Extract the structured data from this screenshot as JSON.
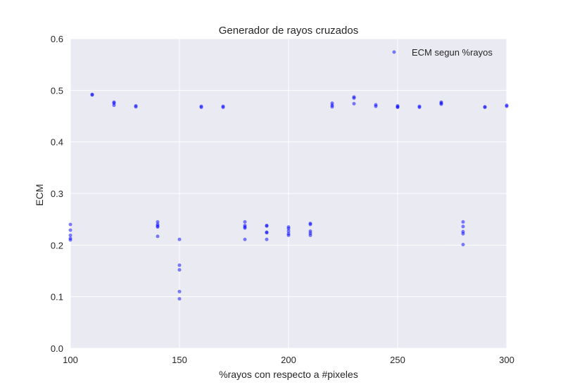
{
  "chart_data": {
    "type": "scatter",
    "title": "Generador de rayos cruzados",
    "xlabel": "%rayos con respecto a #pixeles",
    "ylabel": "ECM",
    "xlim": [
      100,
      300
    ],
    "ylim": [
      0.0,
      0.6
    ],
    "xticks": [
      "100",
      "150",
      "200",
      "250",
      "300"
    ],
    "yticks": [
      "0.0",
      "0.1",
      "0.2",
      "0.3",
      "0.4",
      "0.5",
      "0.6"
    ],
    "grid": true,
    "legend_position": "top-right",
    "colors": {
      "plot_bg": "#eaeaf2",
      "grid": "#ffffff",
      "marker": "#0000ff"
    },
    "series": [
      {
        "name": "ECM segun %rayos",
        "points": [
          [
            100,
            0.24
          ],
          [
            100,
            0.229
          ],
          [
            100,
            0.219
          ],
          [
            100,
            0.213
          ],
          [
            100,
            0.21
          ],
          [
            110,
            0.491
          ],
          [
            110,
            0.492
          ],
          [
            120,
            0.477
          ],
          [
            120,
            0.475
          ],
          [
            120,
            0.471
          ],
          [
            130,
            0.47
          ],
          [
            130,
            0.468
          ],
          [
            140,
            0.245
          ],
          [
            140,
            0.24
          ],
          [
            140,
            0.237
          ],
          [
            140,
            0.235
          ],
          [
            140,
            0.217
          ],
          [
            150,
            0.211
          ],
          [
            150,
            0.161
          ],
          [
            150,
            0.152
          ],
          [
            150,
            0.11
          ],
          [
            150,
            0.096
          ],
          [
            160,
            0.469
          ],
          [
            160,
            0.467
          ],
          [
            170,
            0.469
          ],
          [
            170,
            0.467
          ],
          [
            180,
            0.245
          ],
          [
            180,
            0.238
          ],
          [
            180,
            0.235
          ],
          [
            180,
            0.233
          ],
          [
            180,
            0.211
          ],
          [
            190,
            0.238
          ],
          [
            190,
            0.237
          ],
          [
            190,
            0.225
          ],
          [
            190,
            0.224
          ],
          [
            190,
            0.211
          ],
          [
            200,
            0.235
          ],
          [
            200,
            0.232
          ],
          [
            200,
            0.227
          ],
          [
            200,
            0.222
          ],
          [
            200,
            0.219
          ],
          [
            210,
            0.242
          ],
          [
            210,
            0.24
          ],
          [
            210,
            0.227
          ],
          [
            210,
            0.223
          ],
          [
            210,
            0.219
          ],
          [
            220,
            0.475
          ],
          [
            220,
            0.471
          ],
          [
            220,
            0.468
          ],
          [
            230,
            0.487
          ],
          [
            230,
            0.485
          ],
          [
            230,
            0.474
          ],
          [
            240,
            0.472
          ],
          [
            240,
            0.469
          ],
          [
            250,
            0.47
          ],
          [
            250,
            0.468
          ],
          [
            250,
            0.467
          ],
          [
            260,
            0.469
          ],
          [
            260,
            0.467
          ],
          [
            270,
            0.477
          ],
          [
            270,
            0.475
          ],
          [
            270,
            0.473
          ],
          [
            280,
            0.245
          ],
          [
            280,
            0.236
          ],
          [
            280,
            0.226
          ],
          [
            280,
            0.222
          ],
          [
            280,
            0.201
          ],
          [
            290,
            0.468
          ],
          [
            290,
            0.467
          ],
          [
            300,
            0.471
          ],
          [
            300,
            0.469
          ]
        ]
      }
    ]
  }
}
